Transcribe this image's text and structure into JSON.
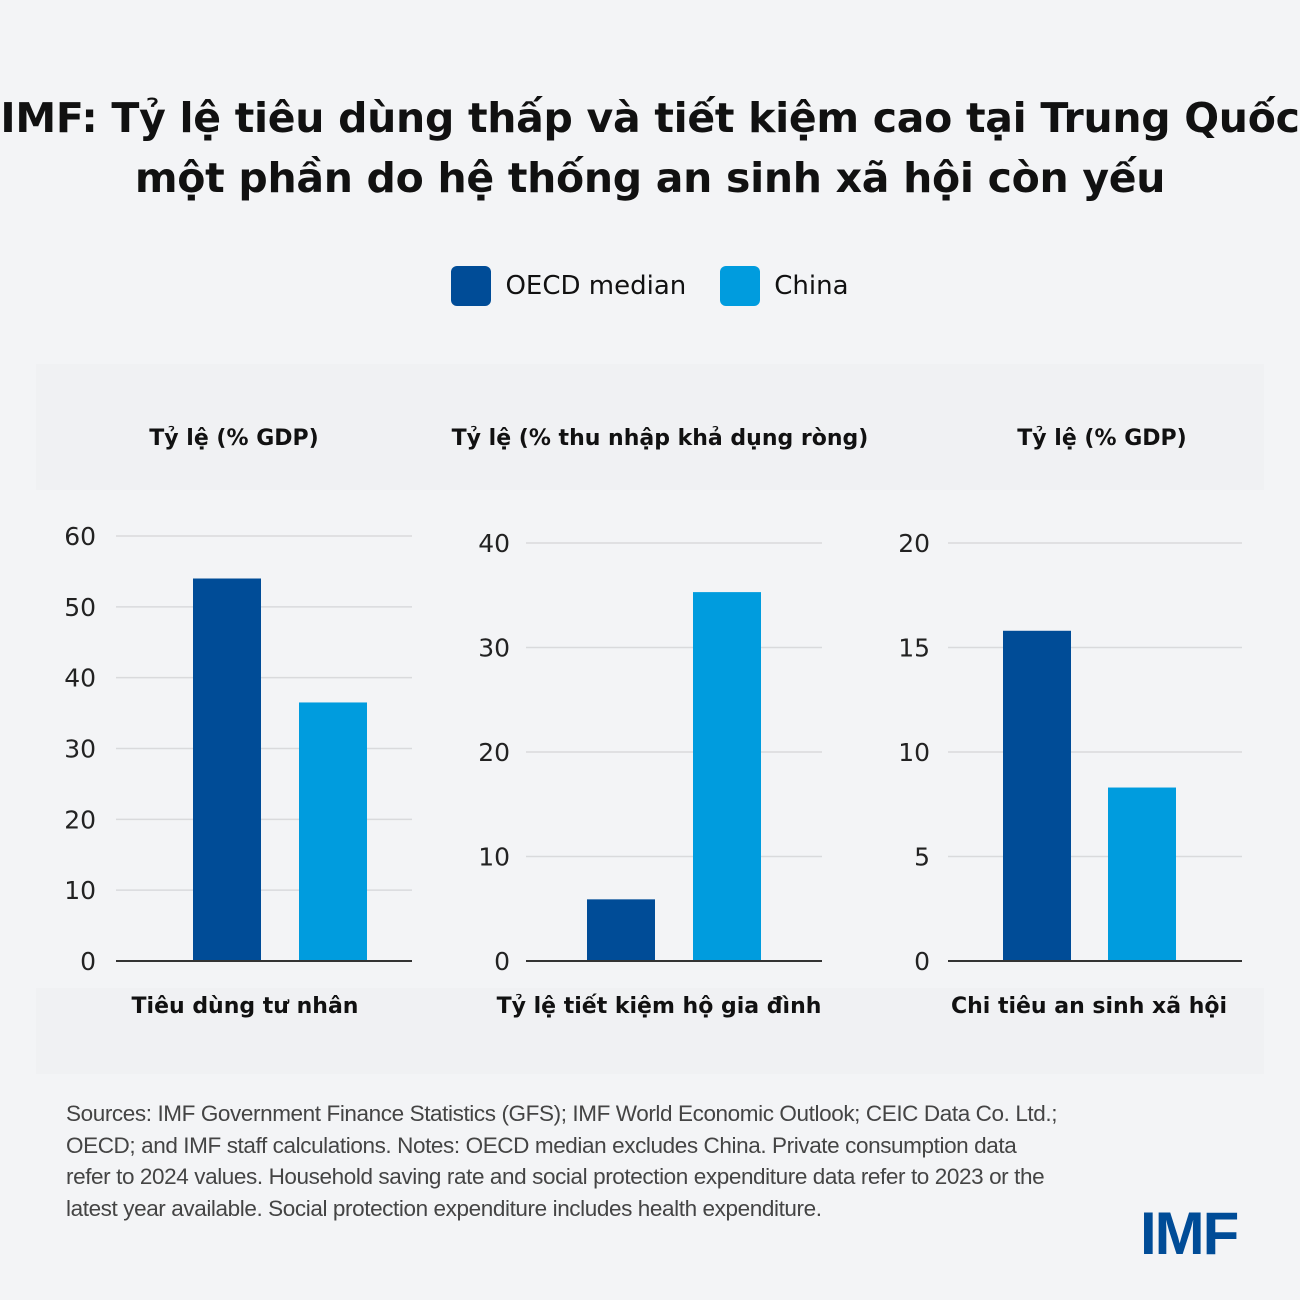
{
  "title": {
    "line1": "IMF: Tỷ lệ tiêu dùng thấp và tiết kiệm cao tại Trung Quốc",
    "line2": "một phần do hệ thống an sinh xã hội còn yếu"
  },
  "legend": [
    {
      "label": "OECD median",
      "color": "#004c97"
    },
    {
      "label": "China",
      "color": "#009cde"
    }
  ],
  "colors": {
    "oecd": "#004c97",
    "china": "#009cde",
    "grid": "#d9dadc",
    "axis": "#333333"
  },
  "chart_data": [
    {
      "type": "bar",
      "title": "Tỷ lệ (% GDP)",
      "xlabel": "Tiêu dùng tư nhân",
      "ylabel": "",
      "ylim": [
        0,
        60
      ],
      "yticks": [
        0,
        10,
        20,
        30,
        40,
        50,
        60
      ],
      "categories": [
        "Tiêu dùng tư nhân"
      ],
      "series": [
        {
          "name": "OECD median",
          "values": [
            54
          ]
        },
        {
          "name": "China",
          "values": [
            36.5
          ]
        }
      ]
    },
    {
      "type": "bar",
      "title": "Tỷ lệ (% thu nhập khả dụng ròng)",
      "xlabel": "Tỷ lệ tiết kiệm hộ gia đình",
      "ylabel": "",
      "ylim": [
        0,
        40
      ],
      "yticks": [
        0,
        10,
        20,
        30,
        40
      ],
      "categories": [
        "Tỷ lệ tiết kiệm hộ gia đình"
      ],
      "series": [
        {
          "name": "OECD median",
          "values": [
            5.9
          ]
        },
        {
          "name": "China",
          "values": [
            35.3
          ]
        }
      ]
    },
    {
      "type": "bar",
      "title": "Tỷ lệ (% GDP)",
      "xlabel": "Chi tiêu an sinh xã hội",
      "ylabel": "",
      "ylim": [
        0,
        20
      ],
      "yticks": [
        0,
        5,
        10,
        15,
        20
      ],
      "categories": [
        "Chi tiêu an sinh xã hội"
      ],
      "series": [
        {
          "name": "OECD median",
          "values": [
            15.8
          ]
        },
        {
          "name": "China",
          "values": [
            8.3
          ]
        }
      ]
    }
  ],
  "sources": "Sources: IMF Government Finance Statistics (GFS); IMF World Economic Outlook; CEIC Data Co. Ltd.; OECD; and IMF staff calculations. Notes: OECD median excludes China. Private consumption data refer to 2024 values. Household saving rate and social protection expenditure data refer to 2023 or the latest year available. Social protection expenditure includes health expenditure.",
  "logo": "IMF"
}
